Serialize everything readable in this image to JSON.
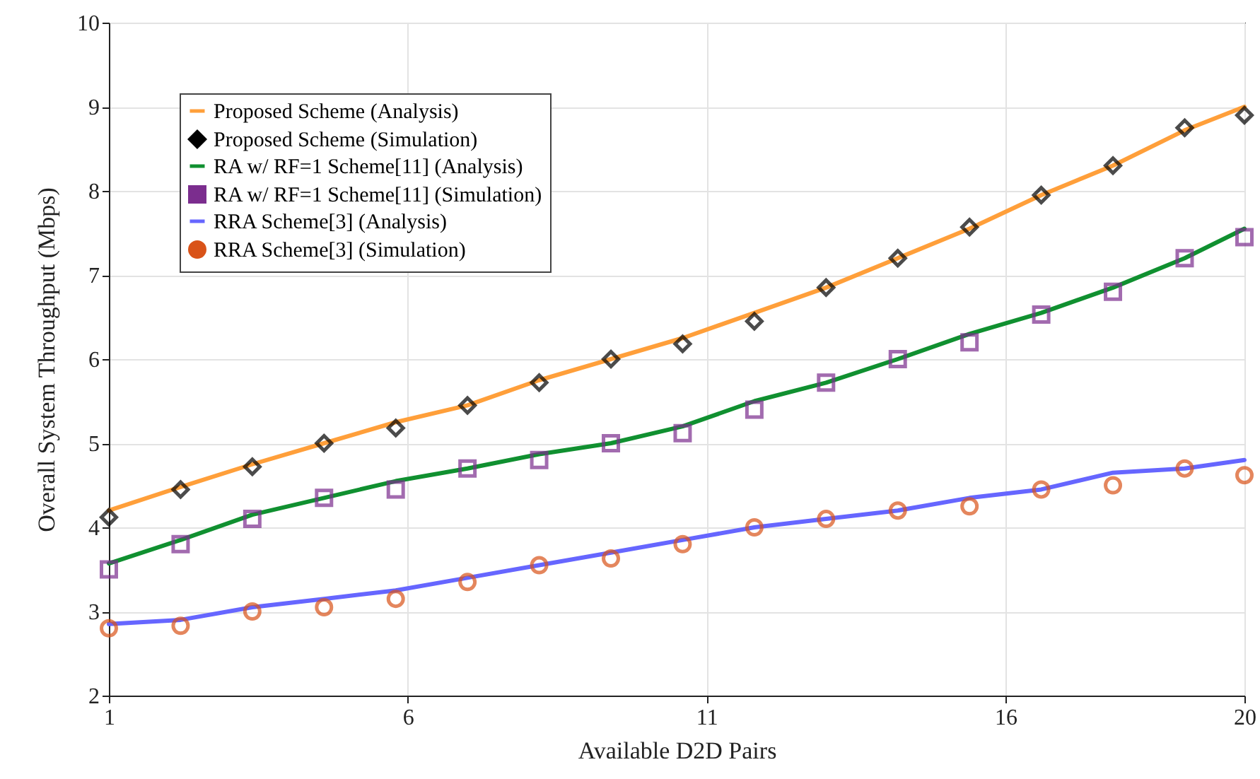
{
  "chart_data": {
    "type": "line",
    "xlabel": "Available D2D Pairs",
    "ylabel": "Overall System Throughput (Mbps)",
    "xlim": [
      1,
      20
    ],
    "xticks": [
      1,
      6,
      11,
      16,
      20
    ],
    "ylim": [
      2,
      10
    ],
    "yticks": [
      2,
      3,
      4,
      5,
      6,
      7,
      8,
      9,
      10
    ],
    "grid": true,
    "legend": "top left",
    "x": [
      1,
      2.2,
      3.4,
      4.6,
      5.8,
      7,
      8.2,
      9.4,
      10.6,
      11.8,
      13,
      14.2,
      15.4,
      16.6,
      17.8,
      19,
      20
    ],
    "series": [
      {
        "name": "Proposed Scheme (Analysis)",
        "color": "#ff9f3a",
        "line_style": "solid",
        "values": [
          4.2,
          4.48,
          4.75,
          5.0,
          5.25,
          5.45,
          5.75,
          6.0,
          6.25,
          6.55,
          6.85,
          7.2,
          7.55,
          7.95,
          8.3,
          8.72,
          9.0
        ]
      },
      {
        "name": "Proposed Scheme (Simulation)",
        "type": "scatter",
        "color": "#000000",
        "marker": "diamond",
        "values": [
          4.12,
          4.45,
          4.72,
          5.0,
          5.18,
          5.45,
          5.72,
          6.0,
          6.18,
          6.45,
          6.85,
          7.2,
          7.57,
          7.95,
          8.3,
          8.75,
          8.9
        ]
      },
      {
        "name": "RA w/ RF=1 Scheme[11] (Analysis)",
        "color": "#109030",
        "line_style": "solid",
        "values": [
          3.57,
          3.85,
          4.15,
          4.35,
          4.55,
          4.7,
          4.87,
          5.0,
          5.2,
          5.5,
          5.72,
          6.0,
          6.3,
          6.55,
          6.85,
          7.2,
          7.55
        ]
      },
      {
        "name": "RA w/ RF=1 Scheme[11] (Simulation)",
        "type": "scatter",
        "color": "#7b2d8e",
        "marker": "square",
        "values": [
          3.5,
          3.8,
          4.1,
          4.35,
          4.45,
          4.7,
          4.8,
          5.0,
          5.12,
          5.4,
          5.72,
          6.0,
          6.2,
          6.53,
          6.8,
          7.2,
          7.45
        ]
      },
      {
        "name": "RRA Scheme[3] (Analysis)",
        "color": "#6666ff",
        "line_style": "solid",
        "values": [
          2.85,
          2.9,
          3.05,
          3.15,
          3.25,
          3.4,
          3.55,
          3.7,
          3.85,
          4.0,
          4.1,
          4.2,
          4.35,
          4.45,
          4.65,
          4.7,
          4.8
        ]
      },
      {
        "name": "RRA Scheme[3] (Simulation)",
        "type": "scatter",
        "color": "#d95319",
        "marker": "circle",
        "values": [
          2.8,
          2.83,
          3.0,
          3.05,
          3.15,
          3.35,
          3.55,
          3.63,
          3.8,
          4.0,
          4.1,
          4.2,
          4.25,
          4.45,
          4.5,
          4.7,
          4.62
        ]
      }
    ]
  }
}
